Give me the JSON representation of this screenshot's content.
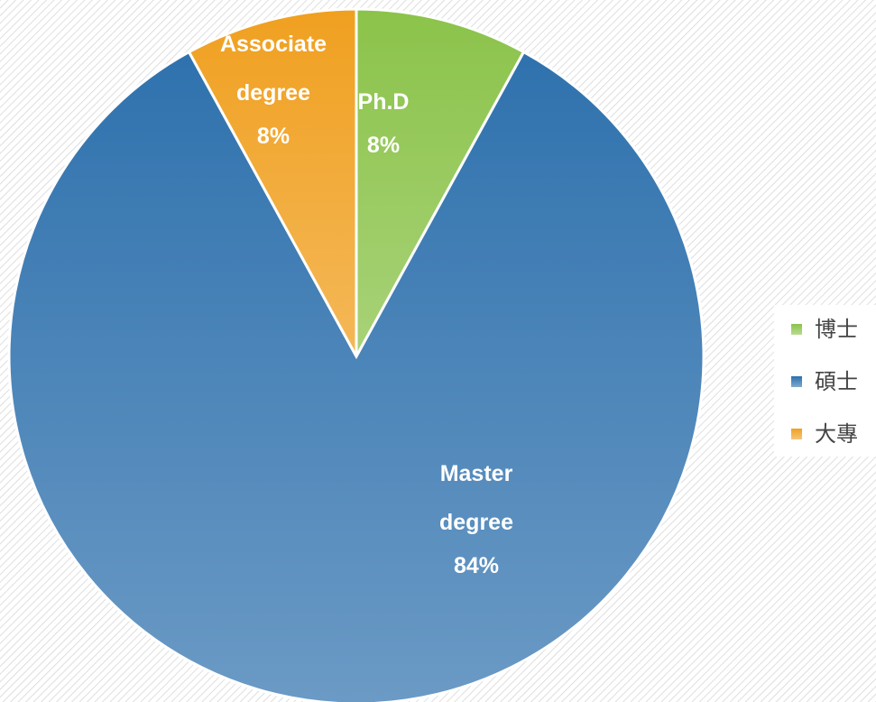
{
  "chart_data": {
    "type": "pie",
    "categories": [
      "博士",
      "碩士",
      "大專"
    ],
    "labels": [
      "Ph.D",
      "Master degree",
      "Associate degree"
    ],
    "values": [
      8,
      84,
      8
    ],
    "value_labels": [
      "8%",
      "84%",
      "8%"
    ],
    "colors": [
      "#8bc34a",
      "#2b6fac",
      "#f0a020"
    ],
    "legend": "right"
  }
}
